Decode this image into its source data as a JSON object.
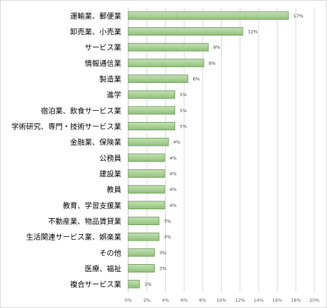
{
  "chart_data": {
    "type": "bar",
    "orientation": "horizontal",
    "title": "",
    "xlabel": "",
    "ylabel": "",
    "categories": [
      "運輸業、郵便業",
      "卸売業、小売業",
      "サービス業",
      "情報通信業",
      "製造業",
      "進学",
      "宿泊業、飲食サービス業",
      "学術研究、専門・技術サービス業",
      "金融業、保険業",
      "公務員",
      "建設業",
      "教員",
      "教育、学習支援業",
      "不動産業、物品賃貸業",
      "生活関連サービス業、娯楽業",
      "その他",
      "医療、福祉",
      "複合サービス業"
    ],
    "values": [
      17.2,
      12.3,
      8.6,
      8.1,
      6.4,
      5.0,
      5.0,
      5.0,
      4.3,
      3.9,
      3.9,
      3.9,
      3.9,
      3.3,
      3.3,
      2.8,
      2.8,
      1.2
    ],
    "data_labels": [
      "17%",
      "12%",
      "9%",
      "8%",
      "6%",
      "5%",
      "5%",
      "5%",
      "4%",
      "4%",
      "4%",
      "4%",
      "4%",
      "3%",
      "3%",
      "3%",
      "3%",
      "1%"
    ],
    "xlim": [
      0,
      20
    ],
    "ticks": [
      0,
      2,
      4,
      6,
      8,
      10,
      12,
      14,
      16,
      18,
      20
    ],
    "tick_labels": [
      "0%",
      "2%",
      "4%",
      "6%",
      "8%",
      "10%",
      "12%",
      "14%",
      "16%",
      "18%",
      "20%"
    ],
    "grid": true,
    "legend": "none",
    "colors": {
      "bar_fill_top": "#c6e0b4",
      "bar_fill_bottom": "#8fc27a",
      "bar_stroke": "#5e8f4a",
      "gridline": "#d9d9d9",
      "axis": "#bfbfbf"
    }
  }
}
